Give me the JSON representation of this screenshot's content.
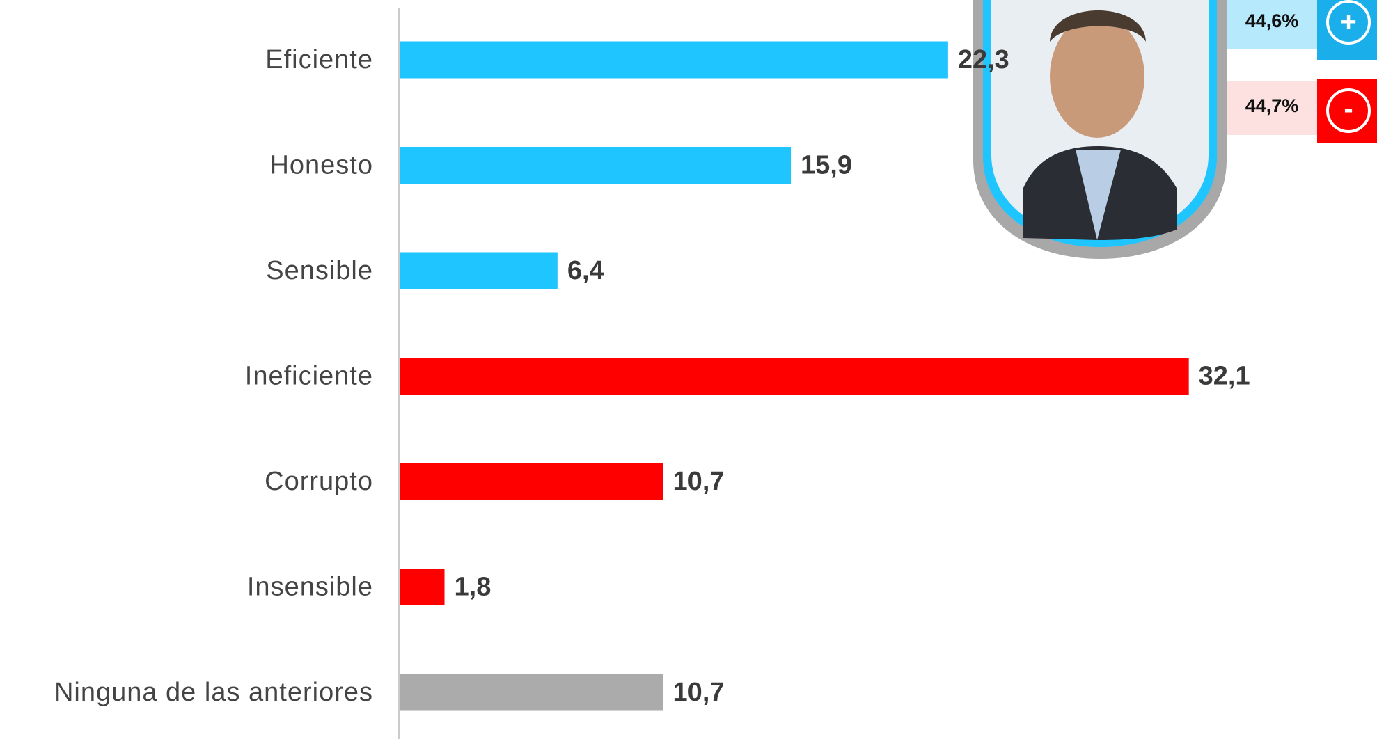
{
  "chart_data": {
    "type": "bar",
    "orientation": "horizontal",
    "categories": [
      "Eficiente",
      "Honesto",
      "Sensible",
      "Ineficiente",
      "Corrupto",
      "Insensible",
      "Ninguna de las anteriores"
    ],
    "values": [
      22.3,
      15.9,
      6.4,
      32.1,
      10.7,
      1.8,
      10.7
    ],
    "value_labels": [
      "22,3",
      "15,9",
      "6,4",
      "32,1",
      "10,7",
      "1,8",
      "10,7"
    ],
    "colors": [
      "#1ec5ff",
      "#1ec5ff",
      "#1ec5ff",
      "#ff0000",
      "#ff0000",
      "#ff0000",
      "#ababab"
    ],
    "xlim": [
      0,
      35
    ]
  },
  "badges": [
    {
      "text": "44,6%",
      "symbol": "+",
      "color": "#1aaeea",
      "background": "#b6e9fb"
    },
    {
      "text": "44,7%",
      "symbol": "-",
      "color": "#ff0000",
      "background": "#fde0e0"
    }
  ]
}
